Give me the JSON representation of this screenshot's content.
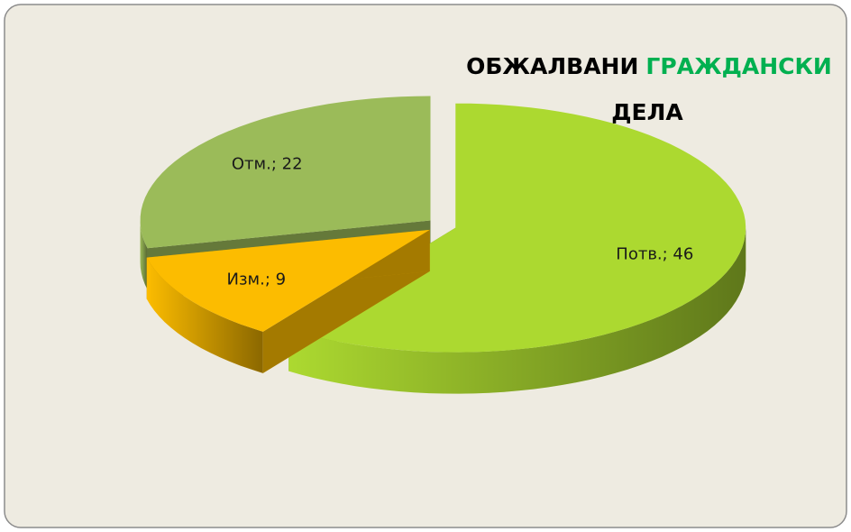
{
  "chart_data": {
    "type": "pie3d",
    "title": [
      "ОБЖАЛВАНИ",
      "ГРАЖДАНСКИ",
      "ДЕЛА"
    ],
    "title_colors": [
      "#000000",
      "#00b050",
      "#000000"
    ],
    "categories": [
      "Потв.",
      "Изм.",
      "Отм."
    ],
    "values": [
      46,
      9,
      22
    ],
    "value_labels": [
      "Потв.; 46",
      "Изм.; 9",
      "Отм.; 22"
    ],
    "colors": [
      "#acd930",
      "#fcbc00",
      "#9bbb59"
    ]
  }
}
